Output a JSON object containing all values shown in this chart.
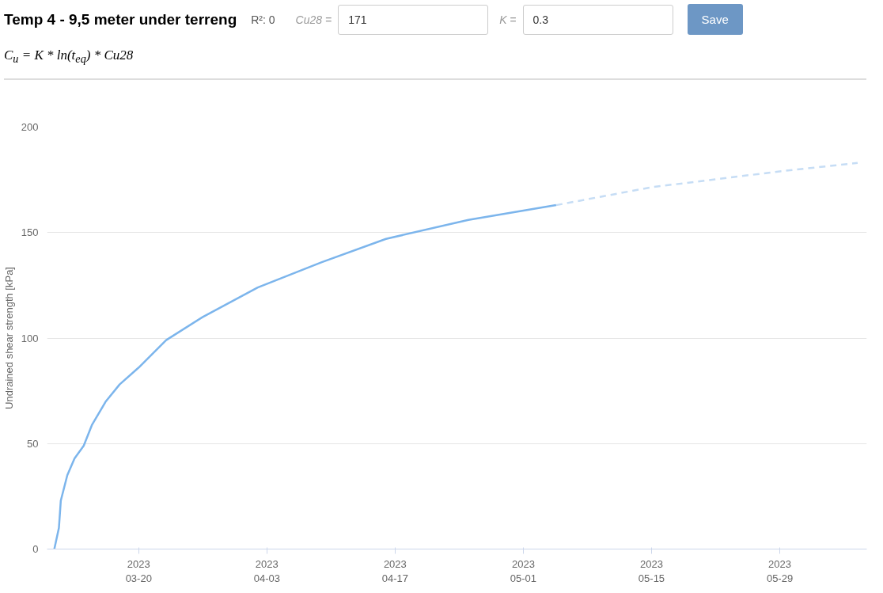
{
  "chart_data": {
    "type": "line",
    "title": "Temp 4 - 9,5 meter under terreng",
    "subtitle": "C$_{u}$ = K * ln(t$_{eq}$) * Cu28",
    "annotations": [
      "R²: 0",
      "Cu28 =",
      "171",
      "K =",
      "0.3",
      "Save"
    ],
    "ylabel": "Undrained shear strength [kPa]",
    "series": [
      {
        "color": "#7cb5ec",
        "line_style": "solid",
        "x": [
          "2023-03-10T19:00",
          "2023-03-11T07:00",
          "2023-03-11T12:00",
          "2023-03-12T05:00",
          "2023-03-13",
          "2023-03-14",
          "2023-03-14T22:00",
          "2023-03-16T10:00",
          "2023-03-17T22:00",
          "2023-03-20",
          "2023-03-23",
          "2023-03-27",
          "2023-04-02",
          "2023-04-09",
          "2023-04-16",
          "2023-04-25",
          "2023-05-04T14:00"
        ],
        "values": [
          0,
          10,
          23,
          35,
          43,
          49,
          59,
          70,
          78,
          86,
          99,
          110,
          124,
          136,
          147,
          156,
          163
        ]
      },
      {
        "color": "#c6ddf5",
        "line_style": "dashed",
        "x": [
          "2023-05-04T14:00",
          "2023-05-15",
          "2023-05-29",
          "2023-06-06T12:00"
        ],
        "values": [
          163,
          171.5,
          179,
          183
        ]
      }
    ],
    "xlim": [
      "2023-03-10",
      "2023-06-07T12:00"
    ],
    "xticks": [
      {
        "value": "2023-03-20",
        "label": "2023\n03-20"
      },
      {
        "value": "2023-04-03",
        "label": "2023\n04-03"
      },
      {
        "value": "2023-04-17",
        "label": "2023\n04-17"
      },
      {
        "value": "2023-05-01",
        "label": "2023\n05-01"
      },
      {
        "value": "2023-05-15",
        "label": "2023\n05-15"
      },
      {
        "value": "2023-05-29",
        "label": "2023\n05-29"
      }
    ],
    "ylim": [
      0,
      200
    ],
    "yticks": [
      0,
      50,
      100,
      150,
      200
    ],
    "grid": "y",
    "marker": "none"
  }
}
